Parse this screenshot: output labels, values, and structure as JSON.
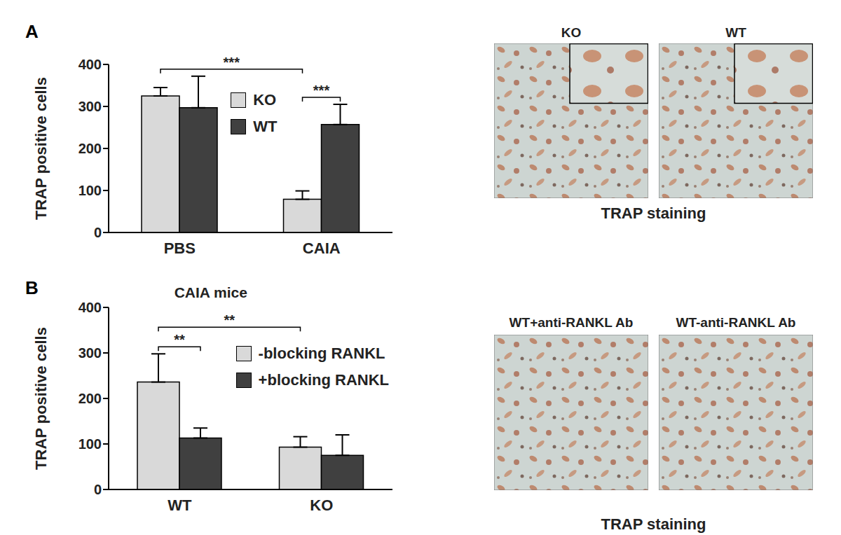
{
  "chart_data": [
    {
      "panel": "A",
      "type": "bar",
      "ylabel": "TRAP positive cells",
      "categories": [
        "PBS",
        "CAIA"
      ],
      "series": [
        {
          "name": "KO",
          "color": "#d9d9d9",
          "values": [
            325,
            79
          ],
          "errors": [
            20,
            20
          ]
        },
        {
          "name": "WT",
          "color": "#404040",
          "values": [
            297,
            257
          ],
          "errors": [
            75,
            48
          ]
        }
      ],
      "ylim": [
        0,
        400
      ],
      "yticks": [
        0,
        100,
        200,
        300,
        400
      ],
      "legend": "upper center",
      "annotations": [
        {
          "text": "***",
          "from": {
            "category": "PBS",
            "series": "KO"
          },
          "to": {
            "category": "CAIA",
            "series": "KO"
          }
        },
        {
          "text": "***",
          "from": {
            "category": "CAIA",
            "series": "KO"
          },
          "to": {
            "category": "CAIA",
            "series": "WT"
          }
        }
      ],
      "images": {
        "titles": [
          "KO",
          "WT"
        ],
        "caption": "TRAP staining"
      }
    },
    {
      "panel": "B",
      "type": "bar",
      "title": "CAIA mice",
      "ylabel": "TRAP positive cells",
      "categories": [
        "WT",
        "KO"
      ],
      "series": [
        {
          "name": "-blocking RANKL",
          "color": "#d9d9d9",
          "values": [
            236,
            93
          ],
          "errors": [
            62,
            23
          ]
        },
        {
          "name": "+blocking RANKL",
          "color": "#404040",
          "values": [
            113,
            75
          ],
          "errors": [
            22,
            45
          ]
        }
      ],
      "ylim": [
        0,
        400
      ],
      "yticks": [
        0,
        100,
        200,
        300,
        400
      ],
      "legend": "upper right",
      "annotations": [
        {
          "text": "**",
          "from": {
            "category": "WT",
            "series": "-blocking RANKL"
          },
          "to": {
            "category": "WT",
            "series": "+blocking RANKL"
          }
        },
        {
          "text": "**",
          "from": {
            "category": "WT",
            "series": "-blocking RANKL"
          },
          "to": {
            "category": "KO",
            "series": "-blocking RANKL"
          }
        }
      ],
      "images": {
        "titles": [
          "WT+anti-RANKL Ab",
          "WT-anti-RANKL Ab"
        ],
        "caption": "TRAP staining"
      }
    }
  ]
}
